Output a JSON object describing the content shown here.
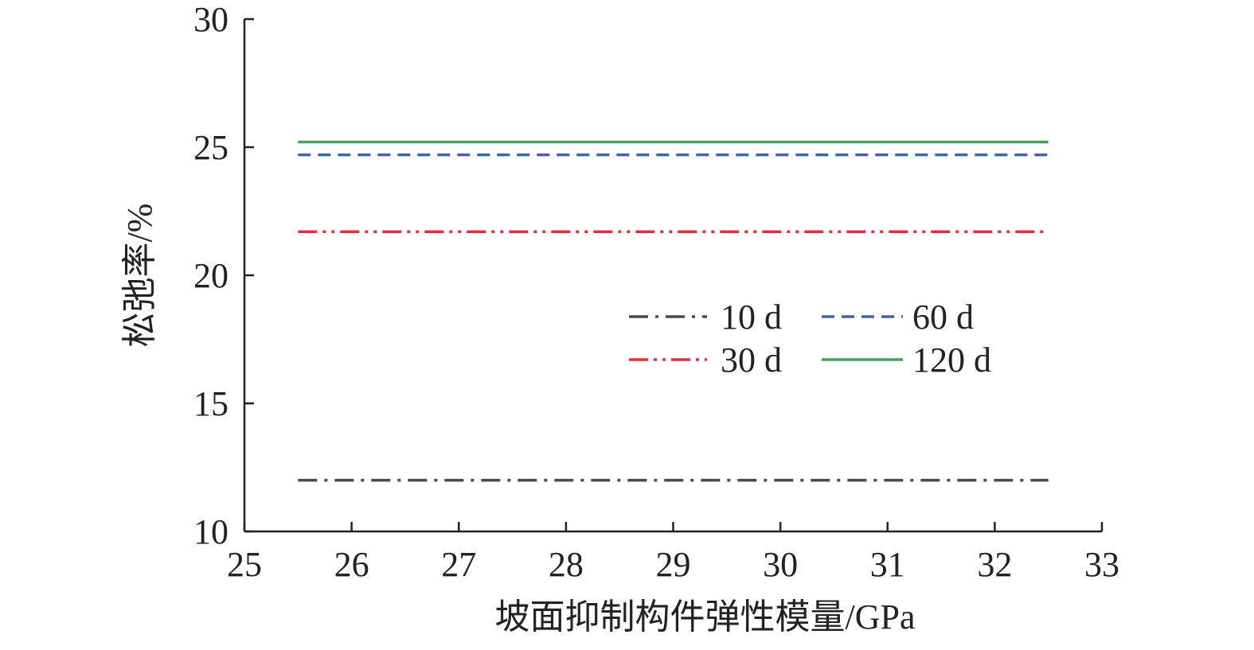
{
  "chart_data": {
    "type": "line",
    "title": "",
    "xlabel": "坡面抑制构件弹性模量/GPa",
    "ylabel": "松弛率/%",
    "xlim": [
      25,
      33
    ],
    "ylim": [
      10,
      30
    ],
    "xticks": [
      25,
      26,
      27,
      28,
      29,
      30,
      31,
      32,
      33
    ],
    "yticks": [
      10,
      15,
      20,
      25,
      30
    ],
    "grid": false,
    "legend_position": "center-right",
    "series": [
      {
        "name": "10 d",
        "color": "#4a4a4a",
        "dash": "dash-dot",
        "x": [
          25.5,
          32.5
        ],
        "y": [
          12.0,
          12.0
        ]
      },
      {
        "name": "30 d",
        "color": "#d0363f",
        "dash": "dash-dot-dot",
        "x": [
          25.5,
          32.5
        ],
        "y": [
          21.7,
          21.7
        ]
      },
      {
        "name": "60 d",
        "color": "#3d63b5",
        "dash": "dashed",
        "x": [
          25.5,
          32.5
        ],
        "y": [
          24.7,
          24.7
        ]
      },
      {
        "name": "120 d",
        "color": "#4a9c5f",
        "dash": "solid",
        "x": [
          25.5,
          32.5
        ],
        "y": [
          25.2,
          25.2
        ]
      }
    ]
  }
}
